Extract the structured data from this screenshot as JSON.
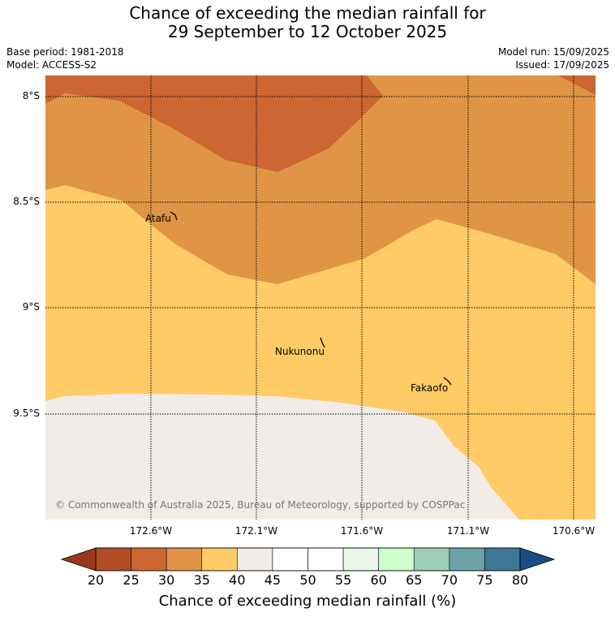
{
  "title": {
    "line1": "Chance of exceeding the median rainfall for",
    "line2": "29 September to 12 October 2025"
  },
  "meta": {
    "base_period": "Base period: 1981-2018",
    "model": "Model: ACCESS-S2",
    "model_run": "Model run: 15/09/2025",
    "issued": "Issued: 17/09/2025"
  },
  "map": {
    "lat_labels": [
      "8°S",
      "8.5°S",
      "9°S",
      "9.5°S"
    ],
    "lon_labels": [
      "172.6°W",
      "172.1°W",
      "171.6°W",
      "171.1°W",
      "170.6°W"
    ],
    "places": [
      "Atafu",
      "Nukunonu",
      "Fakaofo"
    ],
    "copyright": "© Commonwealth of Australia 2025, Bureau of Meteorology, supported by COSPPac",
    "colors": {
      "c20_25": "#b24d25",
      "c25_30": "#cc6632",
      "c30_35": "#e09445",
      "c35_40": "#fecb66",
      "c40_45": "#f1ece7"
    }
  },
  "colorbar": {
    "title": "Chance of exceeding median rainfall (%)",
    "ticks": [
      "20",
      "25",
      "30",
      "35",
      "40",
      "45",
      "50",
      "55",
      "60",
      "65",
      "70",
      "75",
      "80"
    ],
    "colors": [
      "#b24d25",
      "#cc6632",
      "#e09445",
      "#fecb66",
      "#f1ece7",
      "#ffffff",
      "#ffffff",
      "#eaf6ea",
      "#ccffcc",
      "#9fcfb8",
      "#6ba3a6",
      "#3f7796"
    ],
    "low_extend_color": "#98391e",
    "high_extend_color": "#174e86"
  }
}
